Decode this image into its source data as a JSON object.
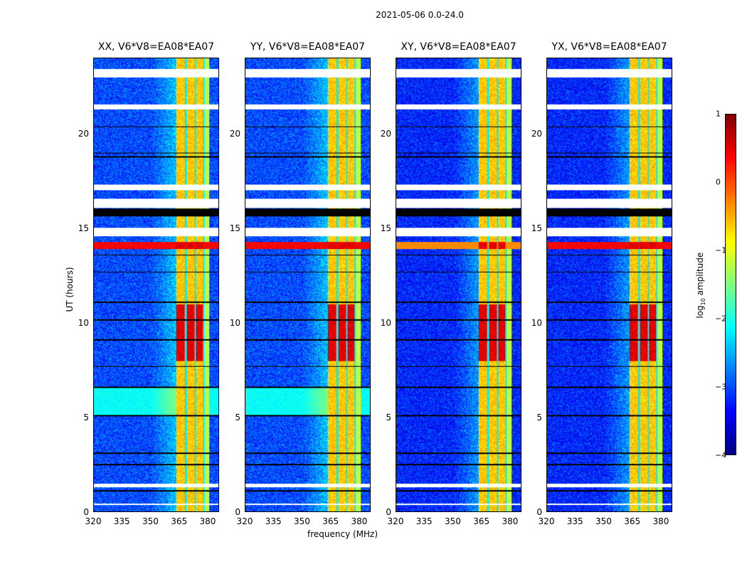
{
  "chart_data": {
    "type": "heatmap",
    "title": "2021-05-06 0.0-24.0",
    "xlabel": "frequency (MHz)",
    "ylabel": "UT (hours)",
    "xlim": [
      320,
      386
    ],
    "ylim": [
      0,
      24
    ],
    "xticks": [
      "320",
      "335",
      "350",
      "365",
      "380"
    ],
    "xtick_values": [
      320,
      335,
      350,
      365,
      380
    ],
    "yticks": [
      "0",
      "5",
      "10",
      "15",
      "20"
    ],
    "ytick_values": [
      0,
      5,
      10,
      15,
      20
    ],
    "panels": [
      {
        "title": "XX, V6*V8=EA08*EA07",
        "background": -3.0
      },
      {
        "title": "YY, V6*V8=EA08*EA07",
        "background": -3.0
      },
      {
        "title": "XY, V6*V8=EA08*EA07",
        "background": -3.2
      },
      {
        "title": "YX, V6*V8=EA08*EA07",
        "background": -3.2
      }
    ],
    "bright_band_mhz": [
      363.5,
      381
    ],
    "flagged_gaps_hours": [
      [
        22.99,
        23.44
      ],
      [
        21.3,
        21.56
      ],
      [
        17.05,
        17.32
      ],
      [
        16.1,
        16.6
      ],
      [
        14.58,
        15.03
      ],
      [
        1.31,
        1.5
      ],
      [
        0.34,
        0.45
      ]
    ],
    "zero_rows_hours": [
      [
        15.63,
        16.04
      ]
    ],
    "strong_rfi_hours": [
      [
        13.9,
        14.3
      ],
      [
        8.0,
        11.0
      ]
    ],
    "colorbar": {
      "label_main": "log",
      "label_sub": "10",
      "label_rest": " amplitude",
      "range": [
        -4,
        1
      ],
      "ticks": [
        "1",
        "0",
        "−1",
        "−2",
        "−3",
        "−4"
      ],
      "tick_values": [
        1,
        0,
        -1,
        -2,
        -3,
        -4
      ],
      "colormap": "jet"
    }
  }
}
